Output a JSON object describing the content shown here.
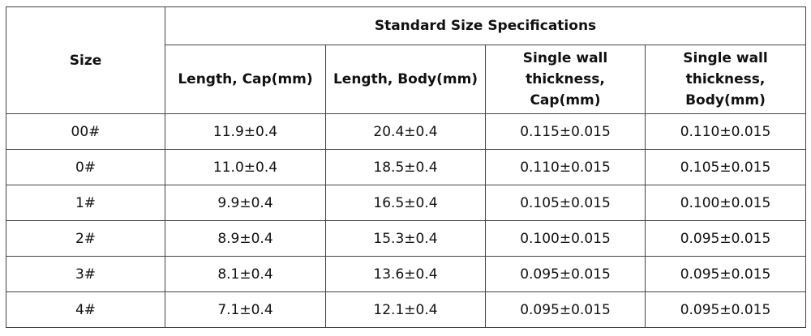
{
  "table": {
    "size_header": "Size",
    "group_header": "Standard Size Specifications",
    "columns": [
      "Length, Cap(mm)",
      "Length, Body(mm)",
      "Single wall thickness, Cap(mm)",
      "Single wall thickness, Body(mm)"
    ],
    "rows": [
      [
        "00#",
        "11.9±0.4",
        "20.4±0.4",
        "0.115±0.015",
        "0.110±0.015"
      ],
      [
        "0#",
        "11.0±0.4",
        "18.5±0.4",
        "0.110±0.015",
        "0.105±0.015"
      ],
      [
        "1#",
        "9.9±0.4",
        "16.5±0.4",
        "0.105±0.015",
        "0.100±0.015"
      ],
      [
        "2#",
        "8.9±0.4",
        "15.3±0.4",
        "0.100±0.015",
        "0.095±0.015"
      ],
      [
        "3#",
        "8.1±0.4",
        "13.6±0.4",
        "0.095±0.015",
        "0.095±0.015"
      ],
      [
        "4#",
        "7.1±0.4",
        "12.1±0.4",
        "0.095±0.015",
        "0.095±0.015"
      ]
    ]
  }
}
